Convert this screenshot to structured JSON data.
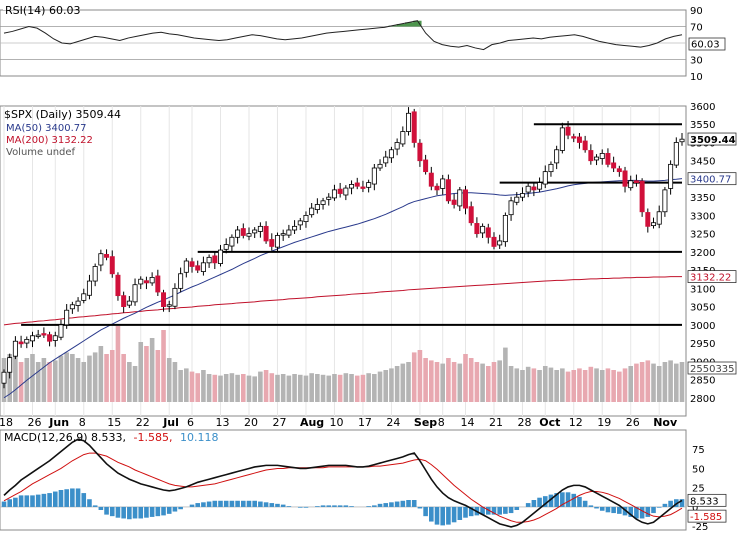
{
  "chart_data": [
    {
      "type": "line",
      "panel": "RSI",
      "label": "RSI(14) 60.03",
      "ylim": [
        10,
        90
      ],
      "ticks": [
        "90",
        "70",
        "50",
        "30",
        "10"
      ],
      "reference_lines": [
        70,
        30
      ],
      "current_value": "60.03",
      "overbought_fill_color": "#3a8a3a",
      "values": [
        62,
        64,
        67,
        70,
        68,
        62,
        55,
        50,
        49,
        52,
        55,
        58,
        57,
        55,
        53,
        56,
        58,
        60,
        62,
        63,
        61,
        60,
        58,
        56,
        55,
        54,
        53,
        54,
        56,
        58,
        60,
        59,
        57,
        55,
        54,
        55,
        56,
        58,
        60,
        62,
        63,
        64,
        65,
        66,
        67,
        68,
        69,
        71,
        73,
        75,
        77,
        62,
        52,
        48,
        46,
        45,
        47,
        44,
        42,
        48,
        50,
        53,
        54,
        55,
        56,
        55,
        57,
        58,
        59,
        60,
        58,
        55,
        52,
        50,
        48,
        47,
        46,
        45,
        47,
        50,
        55,
        58,
        60
      ],
      "line_color": "#222222"
    },
    {
      "type": "candlestick",
      "panel": "Price",
      "title_label": "$SPX (Daily) 3509.44",
      "ylim": [
        2750,
        3600
      ],
      "y_ticks": [
        "3600",
        "3550",
        "3500",
        "3450",
        "3400",
        "3350",
        "3300",
        "3250",
        "3200",
        "3150",
        "3100",
        "3050",
        "3000",
        "2950",
        "2900",
        "2850",
        "2800"
      ],
      "x_ticks": [
        "18",
        "26",
        "Jun",
        "8",
        "15",
        "22",
        "Jul",
        "6",
        "13",
        "20",
        "27",
        "Aug",
        "10",
        "17",
        "24",
        "Sep",
        "8",
        "14",
        "21",
        "28",
        "Oct",
        "12",
        "19",
        "26",
        "Nov"
      ],
      "x_tick_positions": [
        0,
        5,
        9,
        14,
        19,
        24,
        29,
        33,
        38,
        43,
        48,
        53,
        58,
        63,
        68,
        73,
        77,
        81,
        86,
        91,
        95,
        100,
        105,
        110,
        115
      ],
      "legend": [
        {
          "label": "MA(50) 3400.77",
          "color": "#2a3a8c"
        },
        {
          "label": "MA(200) 3132.22",
          "color": "#c0102a"
        },
        {
          "label": "Volume undef",
          "color": "#888888"
        }
      ],
      "price_badges": [
        {
          "value": "3509.44",
          "bg": "#ffffff",
          "color": "#000000"
        },
        {
          "value": "3400.77",
          "bg": "#ffffff",
          "color": "#2a3a8c"
        },
        {
          "value": "3132.22",
          "bg": "#ffffff",
          "color": "#c0102a"
        },
        {
          "value": "2550335",
          "bg": "#ffffff",
          "color": "#444444"
        }
      ],
      "horizontal_lines": [
        {
          "y": 3550,
          "x_start": 93,
          "x_end": 119
        },
        {
          "y": 3390,
          "x_start": 87,
          "x_end": 119
        },
        {
          "y": 3200,
          "x_start": 34,
          "x_end": 119
        },
        {
          "y": 3000,
          "x_start": 3,
          "x_end": 119
        }
      ],
      "closes": [
        2870,
        2910,
        2955,
        2948,
        2960,
        2970,
        2972,
        2975,
        2955,
        2970,
        3000,
        3040,
        3055,
        3065,
        3085,
        3120,
        3160,
        3195,
        3185,
        3140,
        3080,
        3050,
        3065,
        3110,
        3125,
        3115,
        3130,
        3090,
        3050,
        3055,
        3100,
        3140,
        3175,
        3160,
        3150,
        3170,
        3185,
        3170,
        3205,
        3220,
        3240,
        3260,
        3245,
        3250,
        3260,
        3270,
        3230,
        3215,
        3245,
        3250,
        3260,
        3270,
        3285,
        3300,
        3320,
        3330,
        3340,
        3350,
        3370,
        3360,
        3375,
        3385,
        3380,
        3375,
        3390,
        3430,
        3440,
        3460,
        3480,
        3500,
        3530,
        3580,
        3500,
        3450,
        3420,
        3380,
        3370,
        3400,
        3340,
        3330,
        3370,
        3320,
        3280,
        3250,
        3270,
        3240,
        3215,
        3230,
        3300,
        3340,
        3350,
        3360,
        3380,
        3370,
        3390,
        3420,
        3440,
        3480,
        3540,
        3520,
        3515,
        3500,
        3480,
        3450,
        3460,
        3470,
        3440,
        3430,
        3420,
        3380,
        3395,
        3390,
        3310,
        3270,
        3280,
        3310,
        3370,
        3440,
        3500,
        3509
      ],
      "ma50": [
        2800,
        2810,
        2822,
        2835,
        2848,
        2860,
        2872,
        2884,
        2896,
        2906,
        2916,
        2926,
        2936,
        2946,
        2956,
        2966,
        2976,
        2986,
        2994,
        3002,
        3010,
        3018,
        3025,
        3032,
        3040,
        3048,
        3055,
        3062,
        3068,
        3075,
        3082,
        3090,
        3097,
        3104,
        3110,
        3117,
        3124,
        3131,
        3138,
        3145,
        3152,
        3160,
        3168,
        3175,
        3182,
        3190,
        3196,
        3202,
        3208,
        3214,
        3220,
        3226,
        3231,
        3236,
        3241,
        3246,
        3251,
        3256,
        3260,
        3264,
        3268,
        3272,
        3276,
        3281,
        3286,
        3291,
        3297,
        3303,
        3310,
        3317,
        3324,
        3332,
        3338,
        3342,
        3346,
        3350,
        3354,
        3356,
        3358,
        3360,
        3361,
        3362,
        3362,
        3361,
        3360,
        3359,
        3358,
        3356,
        3355,
        3356,
        3357,
        3358,
        3360,
        3362,
        3364,
        3367,
        3370,
        3373,
        3377,
        3381,
        3384,
        3386,
        3388,
        3390,
        3391,
        3392,
        3393,
        3394,
        3395,
        3395,
        3396,
        3396,
        3395,
        3394,
        3394,
        3395,
        3396,
        3398,
        3399,
        3400.77
      ],
      "ma200": [
        3000,
        3002,
        3004,
        3005,
        3007,
        3008,
        3010,
        3011,
        3013,
        3014,
        3016,
        3018,
        3019,
        3021,
        3022,
        3024,
        3025,
        3027,
        3028,
        3030,
        3031,
        3033,
        3034,
        3036,
        3037,
        3039,
        3040,
        3041,
        3043,
        3044,
        3045,
        3047,
        3048,
        3049,
        3051,
        3052,
        3053,
        3055,
        3056,
        3057,
        3058,
        3060,
        3061,
        3062,
        3063,
        3065,
        3066,
        3067,
        3068,
        3069,
        3071,
        3072,
        3073,
        3074,
        3075,
        3077,
        3078,
        3079,
        3080,
        3081,
        3082,
        3084,
        3085,
        3086,
        3087,
        3088,
        3090,
        3091,
        3092,
        3093,
        3094,
        3096,
        3097,
        3098,
        3099,
        3100,
        3101,
        3102,
        3103,
        3104,
        3105,
        3106,
        3107,
        3108,
        3109,
        3110,
        3111,
        3112,
        3113,
        3114,
        3115,
        3116,
        3117,
        3118,
        3119,
        3120,
        3121,
        3122,
        3122,
        3123,
        3124,
        3124,
        3125,
        3126,
        3126,
        3127,
        3127,
        3128,
        3128,
        3129,
        3129,
        3130,
        3130,
        3130,
        3131,
        3131,
        3131,
        3132,
        3132,
        3132.22
      ],
      "volume_rel": [
        0.55,
        0.6,
        0.65,
        0.5,
        0.55,
        0.6,
        0.5,
        0.55,
        0.5,
        0.52,
        0.58,
        0.62,
        0.6,
        0.55,
        0.5,
        0.58,
        0.62,
        0.7,
        0.6,
        0.65,
        0.95,
        0.6,
        0.5,
        0.45,
        0.75,
        0.7,
        0.8,
        0.65,
        0.9,
        0.55,
        0.5,
        0.4,
        0.42,
        0.38,
        0.36,
        0.4,
        0.35,
        0.34,
        0.33,
        0.35,
        0.36,
        0.34,
        0.35,
        0.33,
        0.32,
        0.38,
        0.4,
        0.36,
        0.34,
        0.35,
        0.33,
        0.35,
        0.34,
        0.33,
        0.36,
        0.35,
        0.34,
        0.33,
        0.35,
        0.34,
        0.36,
        0.35,
        0.33,
        0.34,
        0.36,
        0.35,
        0.38,
        0.4,
        0.42,
        0.45,
        0.48,
        0.5,
        0.62,
        0.65,
        0.55,
        0.52,
        0.5,
        0.48,
        0.55,
        0.5,
        0.48,
        0.6,
        0.55,
        0.5,
        0.48,
        0.45,
        0.5,
        0.52,
        0.68,
        0.45,
        0.42,
        0.4,
        0.44,
        0.42,
        0.4,
        0.45,
        0.43,
        0.4,
        0.42,
        0.38,
        0.4,
        0.42,
        0.4,
        0.44,
        0.42,
        0.4,
        0.42,
        0.4,
        0.38,
        0.42,
        0.45,
        0.48,
        0.5,
        0.52,
        0.48,
        0.45,
        0.5,
        0.52,
        0.48,
        0.5
      ],
      "volume_axis_ticks": [
        "2900",
        "2850",
        "2800"
      ],
      "colors": {
        "up_fill": "#ffffff",
        "up_stroke": "#000000",
        "down_fill": "#d0103a",
        "volume_up": "#b4b4b4",
        "volume_down": "#e8a8b0"
      }
    },
    {
      "type": "line",
      "panel": "MACD",
      "label_main": "MACD(12,26,9) 8.533,",
      "label_signal": "-1.585,",
      "label_hist": "10.118",
      "ylim": [
        -30,
        100
      ],
      "ticks": [
        "75",
        "50",
        "25",
        "0",
        "-25"
      ],
      "current_values": {
        "macd": "8.533",
        "signal": "-1.585"
      },
      "macd": [
        15,
        22,
        28,
        35,
        40,
        45,
        50,
        55,
        60,
        66,
        72,
        78,
        84,
        88,
        86,
        80,
        72,
        64,
        56,
        50,
        44,
        40,
        36,
        33,
        30,
        28,
        26,
        24,
        22,
        21,
        22,
        24,
        26,
        29,
        32,
        34,
        36,
        38,
        40,
        42,
        44,
        46,
        48,
        50,
        52,
        53,
        54,
        54,
        54,
        53,
        52,
        51,
        50,
        50,
        51,
        52,
        53,
        54,
        54,
        54,
        54,
        53,
        52,
        52,
        53,
        55,
        57,
        59,
        61,
        63,
        65,
        68,
        70,
        60,
        48,
        36,
        26,
        18,
        12,
        8,
        5,
        2,
        -2,
        -6,
        -10,
        -14,
        -18,
        -22,
        -24,
        -26,
        -24,
        -20,
        -14,
        -8,
        -2,
        4,
        10,
        16,
        22,
        26,
        28,
        28,
        26,
        22,
        18,
        14,
        10,
        6,
        2,
        -4,
        -10,
        -16,
        -20,
        -22,
        -20,
        -14,
        -8,
        -2,
        4,
        8.5
      ],
      "signal": [
        8,
        12,
        16,
        20,
        25,
        30,
        34,
        38,
        42,
        46,
        50,
        55,
        60,
        64,
        68,
        70,
        70,
        68,
        66,
        62,
        58,
        55,
        52,
        48,
        45,
        42,
        39,
        36,
        33,
        30,
        28,
        27,
        26,
        26,
        27,
        28,
        29,
        30,
        32,
        34,
        36,
        38,
        40,
        42,
        44,
        46,
        48,
        49,
        50,
        50,
        51,
        51,
        51,
        51,
        51,
        51,
        51,
        52,
        52,
        52,
        52,
        52,
        52,
        52,
        52,
        53,
        53,
        54,
        55,
        56,
        57,
        59,
        61,
        62,
        60,
        55,
        49,
        42,
        35,
        28,
        22,
        16,
        10,
        5,
        0,
        -4,
        -8,
        -12,
        -15,
        -18,
        -20,
        -20,
        -19,
        -17,
        -14,
        -10,
        -6,
        -2,
        3,
        7,
        11,
        15,
        18,
        20,
        20,
        19,
        17,
        14,
        11,
        7,
        3,
        -1,
        -5,
        -9,
        -12,
        -13,
        -12,
        -10,
        -6,
        -1.585
      ],
      "histogram": [
        7,
        10,
        12,
        15,
        15,
        15,
        16,
        17,
        18,
        20,
        22,
        23,
        24,
        24,
        18,
        10,
        2,
        -4,
        -10,
        -12,
        -14,
        -15,
        -16,
        -15,
        -15,
        -14,
        -13,
        -12,
        -11,
        -9,
        -6,
        -3,
        0,
        3,
        5,
        6,
        7,
        8,
        8,
        8,
        8,
        8,
        8,
        8,
        8,
        7,
        6,
        5,
        4,
        3,
        1,
        0,
        -1,
        -1,
        0,
        1,
        2,
        2,
        2,
        2,
        2,
        1,
        0,
        0,
        1,
        2,
        4,
        5,
        6,
        7,
        8,
        9,
        9,
        -2,
        -12,
        -19,
        -23,
        -24,
        -23,
        -20,
        -17,
        -14,
        -12,
        -11,
        -10,
        -10,
        -10,
        -10,
        -9,
        -8,
        -4,
        0,
        5,
        9,
        12,
        14,
        16,
        18,
        19,
        19,
        17,
        13,
        8,
        2,
        -2,
        -5,
        -7,
        -8,
        -9,
        -11,
        -13,
        -15,
        -15,
        -13,
        -8,
        -1,
        4,
        8,
        10,
        10.118
      ],
      "colors": {
        "macd": "#111111",
        "signal": "#d01010",
        "histogram": "#3b8fc9"
      }
    }
  ]
}
